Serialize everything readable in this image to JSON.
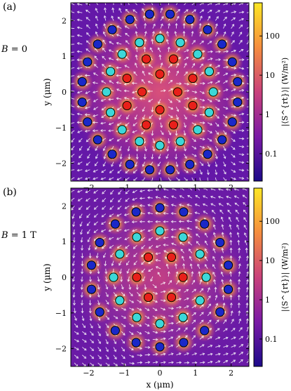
{
  "figure": {
    "panels": [
      {
        "label": "(a)",
        "field_label": "B = 0",
        "field_var": "B",
        "field_eq": " = 0",
        "colorbar_label": "|⟨S^{rt}⟩| (W/m²)"
      },
      {
        "label": "(b)",
        "field_label": "B = 1 T",
        "field_var": "B",
        "field_eq": " = 1 T",
        "colorbar_label": "|⟨S^{rt}⟩| (W/m²)"
      }
    ],
    "xlabel": "x (μm)",
    "ylabel": "y (μm)"
  },
  "chart_data": [
    {
      "type": "heatmap",
      "title": "(a)",
      "ylabel": "y (μm)",
      "xlim": [
        -2.5,
        2.5
      ],
      "ylim": [
        -2.5,
        2.5
      ],
      "x_ticks": [
        -2,
        -1,
        0,
        1,
        2
      ],
      "y_ticks": [
        -2,
        -1,
        0,
        1,
        2
      ],
      "colorbar": {
        "scale": "log",
        "ticks": [
          "0.1",
          "1",
          "10",
          "100"
        ],
        "label": "|⟨S^{rt}⟩| (W/m²)",
        "colors": [
          "#1c0a8a",
          "#7a1aa6",
          "#c9417b",
          "#f58d3f",
          "#fde725"
        ]
      },
      "particle_rings": [
        {
          "radius": 0.5,
          "count": 4,
          "rotation_deg": 0,
          "color": "#e8201a"
        },
        {
          "radius": 1.0,
          "count": 8,
          "rotation_deg": 22.5,
          "color": "#e8201a"
        },
        {
          "radius": 1.5,
          "count": 16,
          "rotation_deg": 0,
          "color": "#3cd8d8"
        },
        {
          "radius": 2.2,
          "count": 24,
          "rotation_deg": 7.5,
          "color": "#1a28c8"
        }
      ],
      "vector_field": "radial"
    },
    {
      "type": "heatmap",
      "title": "(b)",
      "xlabel": "x (μm)",
      "ylabel": "y (μm)",
      "xlim": [
        -2.5,
        2.5
      ],
      "ylim": [
        -2.5,
        2.5
      ],
      "x_ticks": [
        -2,
        -1,
        0,
        1,
        2
      ],
      "y_ticks": [
        -2,
        -1,
        0,
        1,
        2
      ],
      "colorbar": {
        "scale": "log",
        "ticks": [
          "0.1",
          "1",
          "10",
          "100"
        ],
        "label": "|⟨S^{rt}⟩| (W/m²)",
        "colors": [
          "#1c0a8a",
          "#7a1aa6",
          "#c9417b",
          "#f58d3f",
          "#fde725"
        ]
      },
      "particle_rings": [
        {
          "radius": 0.65,
          "count": 6,
          "rotation_deg": 0,
          "color": "#e8201a"
        },
        {
          "radius": 1.3,
          "count": 12,
          "rotation_deg": 0,
          "color": "#3cd8d8"
        },
        {
          "radius": 1.95,
          "count": 18,
          "rotation_deg": 10,
          "color": "#1a28c8"
        }
      ],
      "vector_field": "vortex"
    }
  ]
}
